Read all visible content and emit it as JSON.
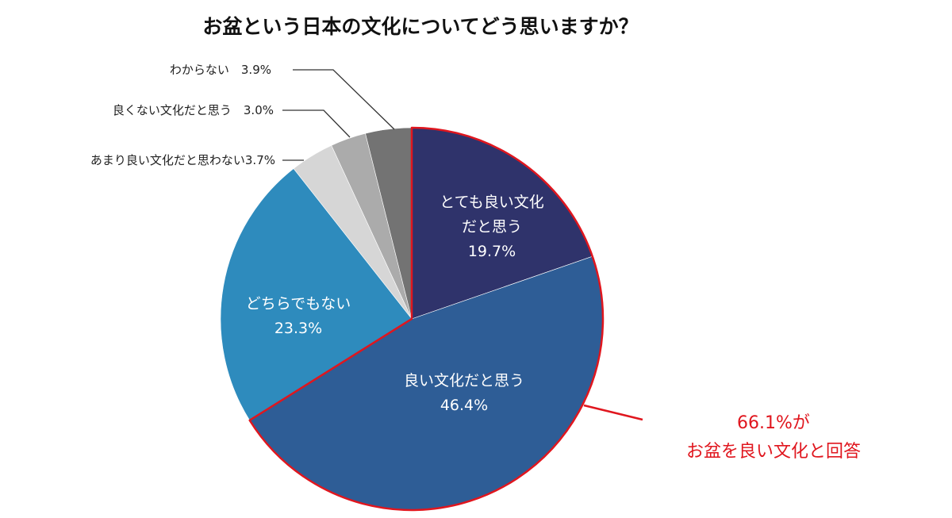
{
  "title": "お盆という日本の文化についてどう思いますか？",
  "chart_data": {
    "type": "pie",
    "title": "お盆という日本の文化についてどう思いますか？",
    "start_angle_deg": 0,
    "direction": "clockwise",
    "slices": [
      {
        "label": "とても良い文化だと思う",
        "value": 19.7,
        "color": "#2f336b",
        "label_position": "inside"
      },
      {
        "label": "良い文化だと思う",
        "value": 46.4,
        "color": "#2e5d96",
        "label_position": "inside"
      },
      {
        "label": "どちらでもない",
        "value": 23.3,
        "color": "#2e8bbd",
        "label_position": "inside"
      },
      {
        "label": "あまり良い文化だと思わない",
        "value": 3.7,
        "color": "#d6d6d6",
        "label_position": "outside"
      },
      {
        "label": "良くない文化だと思う",
        "value": 3.0,
        "color": "#ababab",
        "label_position": "outside"
      },
      {
        "label": "わからない",
        "value": 3.9,
        "color": "#737373",
        "label_position": "outside"
      }
    ],
    "highlight": {
      "slices": [
        "とても良い文化だと思う",
        "良い文化だと思う"
      ],
      "outline_color": "#e0161e",
      "annotation": "66.1%が お盆を良い文化と回答"
    },
    "legend": "none"
  },
  "labels": {
    "very_good_line1": "とても良い文化",
    "very_good_line2": "だと思う",
    "very_good_pct": "19.7%",
    "good_line1": "良い文化だと思う",
    "good_pct": "46.4%",
    "neutral_line1": "どちらでもない",
    "neutral_pct": "23.3%",
    "not_really": "あまり良い文化だと思わない3.7%",
    "not_good": "良くない文化だと思う　3.0%",
    "dont_know": "わからない　3.9%"
  },
  "callout": {
    "line1": "66.1%が",
    "line2": "お盆を良い文化と回答",
    "color": "#e0161e"
  }
}
